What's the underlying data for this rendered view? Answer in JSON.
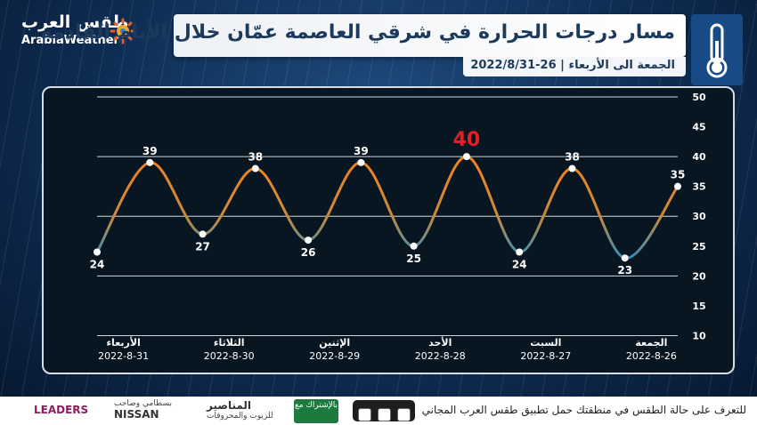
{
  "header": {
    "title": "مسار درجات الحرارة في شرقي العاصمة عمّان خلال الأيام القادمة",
    "subtitle": "الجمعة الى الأربعاء | 26-2022/8/31"
  },
  "logo": {
    "arabic": "طقس العرب",
    "english": "ArabiaWeather"
  },
  "chart_data": {
    "type": "line",
    "title": "",
    "xlabel": "",
    "ylabel": "",
    "ylim": [
      5,
      50
    ],
    "yticks": [
      10,
      15,
      20,
      25,
      30,
      35,
      40,
      45,
      50
    ],
    "grid": true,
    "categories": [
      {
        "day": "الأربعاء",
        "date": "2022-8-31"
      },
      {
        "day": "الثلاثاء",
        "date": "2022-8-30"
      },
      {
        "day": "الإثنين",
        "date": "2022-8-29"
      },
      {
        "day": "الأحد",
        "date": "2022-8-28"
      },
      {
        "day": "السبت",
        "date": "2022-8-27"
      },
      {
        "day": "الجمعة",
        "date": "2022-8-26"
      }
    ],
    "points": [
      24,
      39,
      27,
      38,
      26,
      39,
      25,
      40,
      24,
      38,
      23,
      35
    ],
    "highlight_value": 40,
    "colors": {
      "high": "#f5821f",
      "low": "#1f8ecf",
      "highlight": "#e31e24",
      "grid": "#d0d5dc"
    }
  },
  "footer": {
    "text": "للتعرف على حالة الطقس في منطقتك حمل تطبيق طقس العرب المجاني",
    "sponsor_tag": "بالإشتراك مع",
    "sponsor_1": "المناصير",
    "sponsor_1_sub": "للزيوت والمحروقات",
    "sponsor_2_ar": "بسطامي وصاحب",
    "sponsor_2_en": "NISSAN",
    "sponsor_3": "LEADERS",
    "store_icons": [
      "play-store-icon",
      "app-store-icon",
      "huawei-store-icon"
    ]
  }
}
